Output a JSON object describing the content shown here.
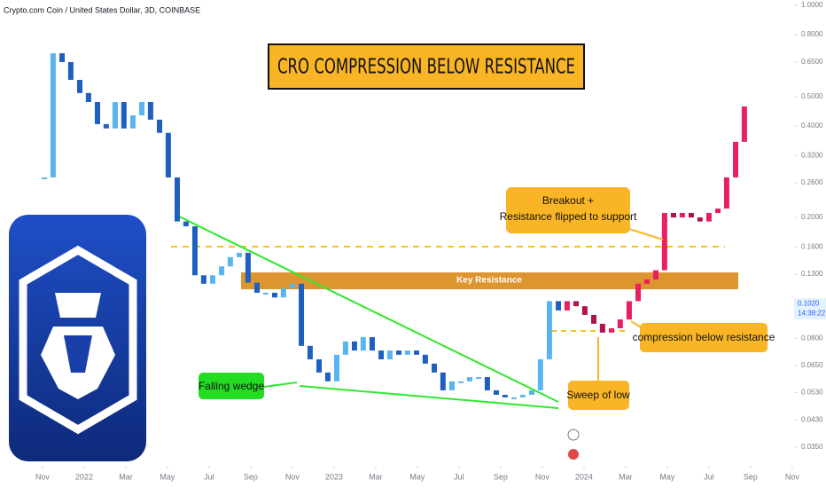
{
  "chart_data": {
    "type": "candlestick",
    "title": "CRO COMPRESSION BELOW RESISTANCE",
    "symbol": "Crypto.com Coin / United States Dollar, 3D, COINBASE",
    "xlim": [
      -2.04,
      37.62
    ],
    "ylim": [
      0.0304,
      1.041
    ],
    "log_y": true,
    "grid": false,
    "xticks": [
      {
        "value": 0,
        "label": "Nov"
      },
      {
        "value": 2,
        "label": "2022"
      },
      {
        "value": 4,
        "label": "Mar"
      },
      {
        "value": 6,
        "label": "May"
      },
      {
        "value": 8,
        "label": "Jul"
      },
      {
        "value": 10,
        "label": "Sep"
      },
      {
        "value": 12,
        "label": "Nov"
      },
      {
        "value": 14,
        "label": "2023"
      },
      {
        "value": 16,
        "label": "Mar"
      },
      {
        "value": 18,
        "label": "May"
      },
      {
        "value": 20,
        "label": "Jul"
      },
      {
        "value": 22,
        "label": "Sep"
      },
      {
        "value": 24,
        "label": "Nov"
      },
      {
        "value": 26,
        "label": "2024"
      },
      {
        "value": 28,
        "label": "Mar"
      },
      {
        "value": 30,
        "label": "May"
      },
      {
        "value": 32,
        "label": "Jul"
      },
      {
        "value": 34,
        "label": "Sep"
      },
      {
        "value": 36,
        "label": "Nov"
      }
    ],
    "yticks": [
      {
        "value": 1,
        "label": "1.0000"
      },
      {
        "value": 0.8,
        "label": "0.8000"
      },
      {
        "value": 0.65,
        "label": "0.6500"
      },
      {
        "value": 0.5,
        "label": "0.5000"
      },
      {
        "value": 0.4,
        "label": "0.4000"
      },
      {
        "value": 0.32,
        "label": "0.3200"
      },
      {
        "value": 0.26,
        "label": "0.2600"
      },
      {
        "value": 0.2,
        "label": "0.2000"
      },
      {
        "value": 0.16,
        "label": "0.1600"
      },
      {
        "value": 0.13,
        "label": "0.1300"
      },
      {
        "value": 0.08,
        "label": "0.0800"
      },
      {
        "value": 0.065,
        "label": "0.0650"
      },
      {
        "value": 0.053,
        "label": "0.0530"
      },
      {
        "value": 0.043,
        "label": "0.0430"
      },
      {
        "value": 0.035,
        "label": "0.0350"
      }
    ],
    "last_price": {
      "value": 0.102,
      "label": "0.1020"
    },
    "countdown": "14:38:22",
    "series": [
      {
        "up_color": "#5ab4f0",
        "down_color": "#1e5fbf",
        "x": [
          0.09,
          0.51,
          0.94,
          1.36,
          1.79,
          2.21,
          2.64,
          3.06,
          3.49,
          3.91,
          4.34,
          4.77,
          5.19,
          5.62,
          6.04,
          6.47,
          6.89,
          7.32,
          7.74,
          8.17,
          8.6,
          9.02,
          9.45,
          9.87,
          10.3,
          10.72,
          11.15,
          11.57,
          12.0,
          12.43,
          12.85,
          13.28,
          13.7,
          14.13,
          14.55,
          14.98,
          15.4,
          15.83,
          16.26,
          16.68,
          17.11,
          17.53,
          17.96,
          18.38,
          18.81,
          19.23,
          19.66,
          20.09,
          20.51,
          20.94,
          21.36,
          21.79,
          22.21,
          22.64,
          23.06,
          23.49,
          23.91,
          24.34,
          24.77
        ],
        "values": [
          0.271,
          0.695,
          0.65,
          0.568,
          0.514,
          0.48,
          0.406,
          0.393,
          0.48,
          0.393,
          0.434,
          0.48,
          0.42,
          0.38,
          0.271,
          0.194,
          0.187,
          0.129,
          0.121,
          0.129,
          0.138,
          0.148,
          0.153,
          0.122,
          0.113,
          0.113,
          0.109,
          0.117,
          0.121,
          0.0755,
          0.0682,
          0.0617,
          0.0577,
          0.0706,
          0.0781,
          0.0729,
          0.0807,
          0.0729,
          0.0682,
          0.0729,
          0.0706,
          0.0729,
          0.0706,
          0.066,
          0.0617,
          0.0539,
          0.0577,
          0.0577,
          0.0596,
          0.0596,
          0.0539,
          0.0521,
          0.0511,
          0.0511,
          0.0521,
          0.0539,
          0.0682,
          0.106,
          0.0988
        ]
      },
      {
        "up_color": "#e91e63",
        "down_color": "#b0124a",
        "x": [
          25.19,
          25.62,
          26.04,
          26.47,
          26.89,
          27.32,
          27.74,
          28.17,
          28.6,
          29.02,
          29.45,
          29.87,
          30.3,
          30.72,
          31.15,
          31.57,
          32.0,
          32.43,
          32.85,
          33.28,
          33.7
        ],
        "values": [
          0.106,
          0.102,
          0.0955,
          0.0893,
          0.0835,
          0.0863,
          0.0923,
          0.106,
          0.121,
          0.125,
          0.134,
          0.207,
          0.2,
          0.207,
          0.2,
          0.194,
          0.207,
          0.214,
          0.271,
          0.355,
          0.464
        ]
      }
    ],
    "annotations": {
      "key_resistance": "Key Resistance",
      "breakout": [
        "Breakout +",
        "Resistance flipped to support"
      ],
      "compression": "compression below resistance",
      "sweep": "Sweep of low",
      "wedge": "Falling wedge"
    }
  }
}
